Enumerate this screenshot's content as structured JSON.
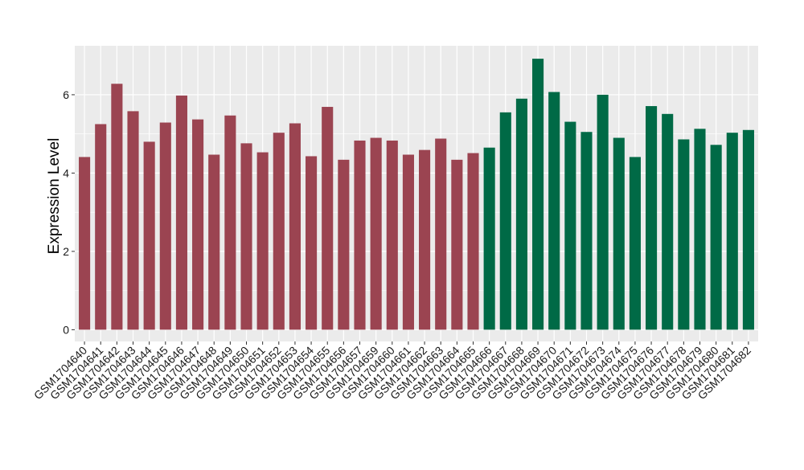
{
  "chart_data": {
    "type": "bar",
    "ylabel": "Expression Level",
    "xlabel": "",
    "ylim": [
      -0.3,
      7.25
    ],
    "yticks": [
      0,
      2,
      4,
      6
    ],
    "grid": true,
    "background": "#EBEBEB",
    "grid_color": "#FFFFFF",
    "categories": [
      "GSM1704640",
      "GSM1704641",
      "GSM1704642",
      "GSM1704643",
      "GSM1704644",
      "GSM1704645",
      "GSM1704646",
      "GSM1704647",
      "GSM1704648",
      "GSM1704649",
      "GSM1704650",
      "GSM1704651",
      "GSM1704652",
      "GSM1704653",
      "GSM1704654",
      "GSM1704655",
      "GSM1704656",
      "GSM1704657",
      "GSM1704659",
      "GSM1704660",
      "GSM1704661",
      "GSM1704662",
      "GSM1704663",
      "GSM1704664",
      "GSM1704665",
      "GSM1704666",
      "GSM1704667",
      "GSM1704668",
      "GSM1704669",
      "GSM1704670",
      "GSM1704671",
      "GSM1704672",
      "GSM1704673",
      "GSM1704674",
      "GSM1704675",
      "GSM1704676",
      "GSM1704677",
      "GSM1704678",
      "GSM1704679",
      "GSM1704680",
      "GSM1704681",
      "GSM1704682"
    ],
    "values": [
      4.41,
      5.25,
      6.28,
      5.58,
      4.8,
      5.29,
      5.98,
      5.37,
      4.47,
      5.47,
      4.76,
      4.53,
      5.03,
      5.27,
      4.43,
      5.69,
      4.34,
      4.83,
      4.9,
      4.83,
      4.47,
      4.59,
      4.88,
      4.34,
      4.51,
      4.65,
      5.55,
      5.9,
      6.92,
      6.07,
      5.31,
      5.05,
      6.0,
      4.9,
      4.41,
      5.71,
      5.51,
      4.86,
      5.13,
      4.72,
      5.03,
      5.1
    ],
    "colors": [
      "#9B4451",
      "#9B4451",
      "#9B4451",
      "#9B4451",
      "#9B4451",
      "#9B4451",
      "#9B4451",
      "#9B4451",
      "#9B4451",
      "#9B4451",
      "#9B4451",
      "#9B4451",
      "#9B4451",
      "#9B4451",
      "#9B4451",
      "#9B4451",
      "#9B4451",
      "#9B4451",
      "#9B4451",
      "#9B4451",
      "#9B4451",
      "#9B4451",
      "#9B4451",
      "#9B4451",
      "#9B4451",
      "#006A46",
      "#006A46",
      "#006A46",
      "#006A46",
      "#006A46",
      "#006A46",
      "#006A46",
      "#006A46",
      "#006A46",
      "#006A46",
      "#006A46",
      "#006A46",
      "#006A46",
      "#006A46",
      "#006A46",
      "#006A46",
      "#006A46"
    ]
  }
}
